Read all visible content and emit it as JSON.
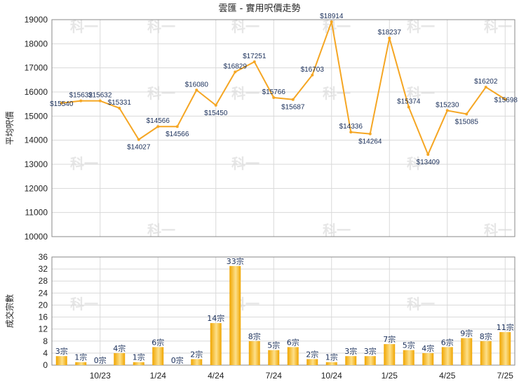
{
  "colors": {
    "line": "#f5a623",
    "bar_light": "#fde08a",
    "bar_dark": "#f0a500",
    "grid": "#d9d9d9",
    "frame": "#888888",
    "label": "#1a2f5a"
  },
  "watermark_text": "科一",
  "chart_data": [
    {
      "type": "line",
      "title": "雲匯 - 實用呎價走勢",
      "xlabel": "",
      "ylabel": "平均呎價",
      "ylim": [
        10000,
        19000
      ],
      "yticks": [
        "10000",
        "11000",
        "12000",
        "13000",
        "14000",
        "15000",
        "16000",
        "17000",
        "18000",
        "19000"
      ],
      "grid": true,
      "series": [
        {
          "values": [
            15540,
            15632,
            15632,
            15331,
            14027,
            14566,
            14566,
            16080,
            15450,
            16829,
            17251,
            15766,
            15687,
            16703,
            18914,
            14336,
            14264,
            18237,
            15374,
            13409,
            15230,
            15085,
            16202,
            15698
          ],
          "labels": [
            "$15540",
            "$15632",
            "$15632",
            "$15331",
            "$14027",
            "$14566",
            "$14566",
            "$16080",
            "$15450",
            "$16829",
            "$17251",
            "$15766",
            "$15687",
            "$16703",
            "$18914",
            "$14336",
            "$14264",
            "$18237",
            "$15374",
            "$13409",
            "$15230",
            "$15085",
            "$16202",
            "$15698"
          ]
        }
      ]
    },
    {
      "type": "bar",
      "xlabel": "",
      "ylabel": "成交宗數",
      "ylim": [
        0,
        36
      ],
      "yticks": [
        "0",
        "4",
        "8",
        "12",
        "16",
        "20",
        "24",
        "28",
        "32",
        "36"
      ],
      "grid": true,
      "x_tick_labels": [
        {
          "label": "10/23",
          "index": 2
        },
        {
          "label": "1/24",
          "index": 5
        },
        {
          "label": "4/24",
          "index": 8
        },
        {
          "label": "7/24",
          "index": 11
        },
        {
          "label": "10/24",
          "index": 14
        },
        {
          "label": "1/25",
          "index": 17
        },
        {
          "label": "4/25",
          "index": 20
        },
        {
          "label": "7/25",
          "index": 23
        }
      ],
      "values": [
        3,
        1,
        0,
        4,
        1,
        6,
        0,
        2,
        14,
        33,
        8,
        5,
        6,
        2,
        1,
        3,
        3,
        7,
        5,
        4,
        6,
        9,
        8,
        11
      ],
      "labels": [
        "3宗",
        "1宗",
        "0宗",
        "4宗",
        "1宗",
        "6宗",
        "0宗",
        "2宗",
        "14宗",
        "33宗",
        "8宗",
        "5宗",
        "6宗",
        "2宗",
        "1宗",
        "3宗",
        "3宗",
        "7宗",
        "5宗",
        "4宗",
        "6宗",
        "9宗",
        "8宗",
        "11宗"
      ]
    }
  ]
}
